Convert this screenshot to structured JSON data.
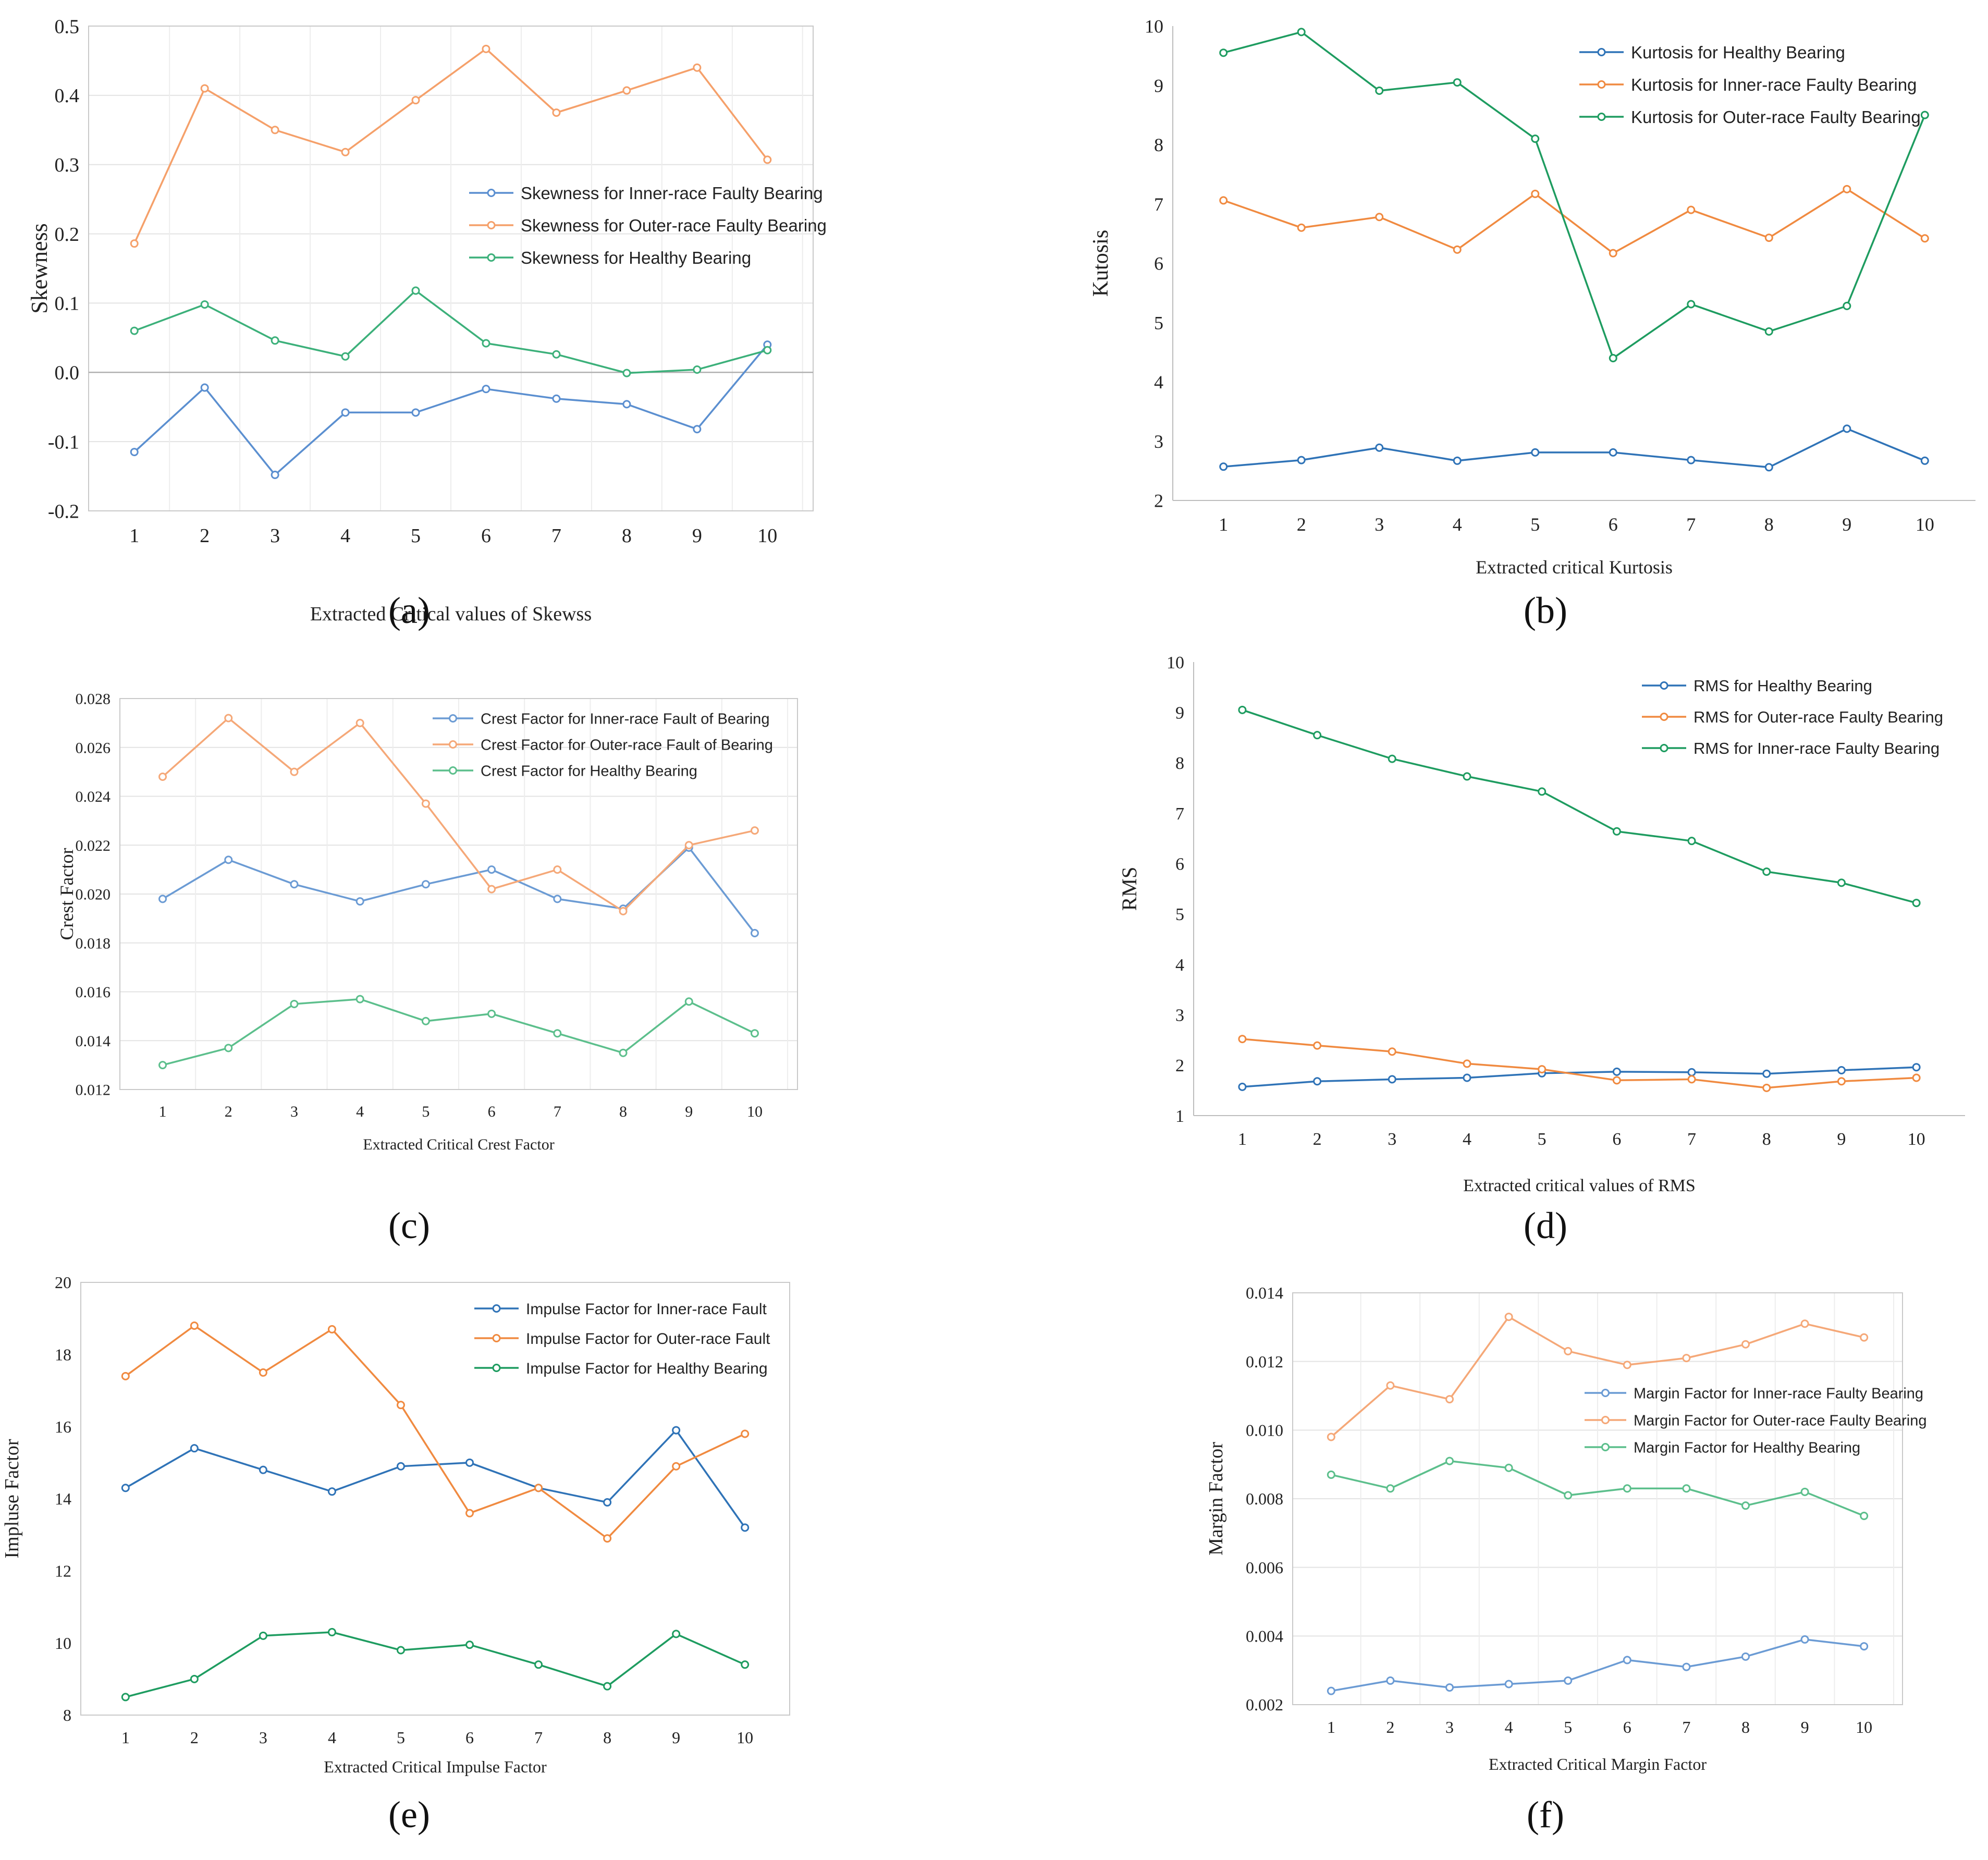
{
  "colors": {
    "blue": "#3f7fc1",
    "orange": "#f28c3c",
    "green": "#2aa36a"
  },
  "chart_data": [
    {
      "id": "a",
      "type": "line",
      "caption": "(a)",
      "title": "",
      "xlabel": "Extracted Critical values of Skewss",
      "ylabel": "Skewness",
      "categories": [
        1,
        2,
        3,
        4,
        5,
        6,
        7,
        8,
        9,
        10
      ],
      "ylim": [
        -0.2,
        0.5
      ],
      "yticks": [
        -0.2,
        -0.1,
        0.0,
        0.1,
        0.2,
        0.3,
        0.4,
        0.5
      ],
      "ytick_labels": [
        "-0.2",
        "-0.1",
        "0.0",
        "0.1",
        "0.2",
        "0.3",
        "0.4",
        "0.5"
      ],
      "grid": true,
      "zero_line": true,
      "legend_position": "right",
      "series": [
        {
          "name": "Skewness for Inner-race Faulty Bearing",
          "color": "#5b8fd0",
          "values": [
            -0.115,
            -0.022,
            -0.148,
            -0.058,
            -0.058,
            -0.024,
            -0.038,
            -0.046,
            -0.082,
            0.04
          ]
        },
        {
          "name": "Skewness for Outer-race Faulty Bearing",
          "color": "#f5a06a",
          "values": [
            0.186,
            0.41,
            0.35,
            0.318,
            0.393,
            0.467,
            0.375,
            0.407,
            0.44,
            0.307
          ]
        },
        {
          "name": "Skewness for Healthy Bearing",
          "color": "#3cb07a",
          "values": [
            0.06,
            0.098,
            0.046,
            0.023,
            0.118,
            0.042,
            0.026,
            -0.001,
            0.004,
            0.032
          ]
        }
      ]
    },
    {
      "id": "b",
      "type": "line",
      "caption": "(b)",
      "title": "",
      "xlabel": "Extracted critical Kurtosis",
      "ylabel": "Kutosis",
      "categories": [
        1,
        2,
        3,
        4,
        5,
        6,
        7,
        8,
        9,
        10
      ],
      "ylim": [
        2,
        10
      ],
      "yticks": [
        2,
        3,
        4,
        5,
        6,
        7,
        8,
        9,
        10
      ],
      "ytick_labels": [
        "2",
        "3",
        "4",
        "5",
        "6",
        "7",
        "8",
        "9",
        "10"
      ],
      "grid": false,
      "legend_position": "top-right",
      "series": [
        {
          "name": "Kurtosis for Healthy Bearing",
          "color": "#2f73b7",
          "values": [
            2.57,
            2.68,
            2.89,
            2.67,
            2.81,
            2.81,
            2.68,
            2.56,
            3.21,
            2.67
          ]
        },
        {
          "name": "Kurtosis for Inner-race Faulty Bearing",
          "color": "#f08a40",
          "values": [
            7.06,
            6.6,
            6.78,
            6.23,
            7.17,
            6.17,
            6.9,
            6.43,
            7.25,
            6.42
          ]
        },
        {
          "name": "Kurtosis for Outer-race Faulty Bearing",
          "color": "#1e9c60",
          "values": [
            9.55,
            9.9,
            8.91,
            9.05,
            8.1,
            4.4,
            5.31,
            4.85,
            5.28,
            8.5
          ]
        }
      ]
    },
    {
      "id": "c",
      "type": "line",
      "caption": "(c)",
      "title": "",
      "xlabel": "Extracted Critical Crest Factor",
      "ylabel": "Crest Factor",
      "categories": [
        1,
        2,
        3,
        4,
        5,
        6,
        7,
        8,
        9,
        10
      ],
      "ylim": [
        0.012,
        0.028
      ],
      "yticks": [
        0.012,
        0.014,
        0.016,
        0.018,
        0.02,
        0.022,
        0.024,
        0.026,
        0.028
      ],
      "ytick_labels": [
        "0.012",
        "0.014",
        "0.016",
        "0.018",
        "0.020",
        "0.022",
        "0.024",
        "0.026",
        "0.028"
      ],
      "grid": true,
      "legend_position": "top-right",
      "series": [
        {
          "name": "Crest Factor for Inner-race Fault of Bearing",
          "color": "#6b9bd4",
          "values": [
            0.0198,
            0.0214,
            0.0204,
            0.0197,
            0.0204,
            0.021,
            0.0198,
            0.0194,
            0.0219,
            0.0184
          ]
        },
        {
          "name": "Crest Factor for Outer-race Fault of Bearing",
          "color": "#f5a878",
          "values": [
            0.0248,
            0.0272,
            0.025,
            0.027,
            0.0237,
            0.0202,
            0.021,
            0.0193,
            0.022,
            0.0226
          ]
        },
        {
          "name": "Crest Factor for Healthy Bearing",
          "color": "#5cbf8c",
          "values": [
            0.013,
            0.0137,
            0.0155,
            0.0157,
            0.0148,
            0.0151,
            0.0143,
            0.0135,
            0.0156,
            0.0143
          ]
        }
      ]
    },
    {
      "id": "d",
      "type": "line",
      "caption": "(d)",
      "title": "",
      "xlabel": "Extracted critical values of RMS",
      "ylabel": "RMS",
      "categories": [
        1,
        2,
        3,
        4,
        5,
        6,
        7,
        8,
        9,
        10
      ],
      "ylim": [
        1,
        10
      ],
      "yticks": [
        1,
        2,
        3,
        4,
        5,
        6,
        7,
        8,
        9,
        10
      ],
      "ytick_labels": [
        "1",
        "2",
        "3",
        "4",
        "5",
        "6",
        "7",
        "8",
        "9",
        "10"
      ],
      "grid": false,
      "legend_position": "top-right",
      "series": [
        {
          "name": "RMS for Healthy Bearing",
          "color": "#2f73b7",
          "values": [
            1.57,
            1.68,
            1.72,
            1.75,
            1.84,
            1.87,
            1.86,
            1.83,
            1.9,
            1.96
          ]
        },
        {
          "name": "RMS for Outer-race Faulty Bearing",
          "color": "#f08a40",
          "values": [
            2.52,
            2.39,
            2.27,
            2.03,
            1.92,
            1.7,
            1.72,
            1.55,
            1.68,
            1.75
          ]
        },
        {
          "name": "RMS for Inner-race Faulty Bearing",
          "color": "#1e9c60",
          "values": [
            9.05,
            8.55,
            8.08,
            7.73,
            7.43,
            6.64,
            6.45,
            5.84,
            5.62,
            5.22
          ]
        }
      ]
    },
    {
      "id": "e",
      "type": "line",
      "caption": "(e)",
      "title": "",
      "xlabel": "Extracted Critical Impulse Factor",
      "ylabel": "Impluse Factor",
      "categories": [
        1,
        2,
        3,
        4,
        5,
        6,
        7,
        8,
        9,
        10
      ],
      "ylim": [
        8,
        20
      ],
      "yticks": [
        8,
        10,
        12,
        14,
        16,
        18,
        20
      ],
      "ytick_labels": [
        "8",
        "10",
        "12",
        "14",
        "16",
        "18",
        "20"
      ],
      "grid": false,
      "legend_position": "top-right",
      "series": [
        {
          "name": "Impulse Factor for Inner-race Fault",
          "color": "#2f73b7",
          "values": [
            14.3,
            15.4,
            14.8,
            14.2,
            14.9,
            15.0,
            14.3,
            13.9,
            15.9,
            13.2
          ]
        },
        {
          "name": "Impulse Factor for Outer-race Fault",
          "color": "#f08a40",
          "values": [
            17.4,
            18.8,
            17.5,
            18.7,
            16.6,
            13.6,
            14.3,
            12.9,
            14.9,
            15.8
          ]
        },
        {
          "name": "Impulse Factor for Healthy Bearing",
          "color": "#1e9c60",
          "values": [
            8.5,
            9.0,
            10.2,
            10.3,
            9.8,
            9.95,
            9.4,
            8.8,
            10.25,
            9.4
          ]
        }
      ]
    },
    {
      "id": "f",
      "type": "line",
      "caption": "(f)",
      "title": "",
      "xlabel": "Extracted Critical Margin Factor",
      "ylabel": "Margin Factor",
      "categories": [
        1,
        2,
        3,
        4,
        5,
        6,
        7,
        8,
        9,
        10
      ],
      "ylim": [
        0.002,
        0.014
      ],
      "yticks": [
        0.002,
        0.004,
        0.006,
        0.008,
        0.01,
        0.012,
        0.014
      ],
      "ytick_labels": [
        "0.002",
        "0.004",
        "0.006",
        "0.008",
        "0.010",
        "0.012",
        "0.014"
      ],
      "grid": true,
      "legend_position": "right",
      "series": [
        {
          "name": "Margin Factor for Inner-race Faulty Bearing",
          "color": "#6b9bd4",
          "values": [
            0.0024,
            0.0027,
            0.0025,
            0.0026,
            0.0027,
            0.0033,
            0.0031,
            0.0034,
            0.0039,
            0.0037
          ]
        },
        {
          "name": "Margin Factor for Outer-race Faulty Bearing",
          "color": "#f5a878",
          "values": [
            0.0098,
            0.0113,
            0.0109,
            0.0133,
            0.0123,
            0.0119,
            0.0121,
            0.0125,
            0.0131,
            0.0127
          ]
        },
        {
          "name": "Margin Factor for Healthy Bearing",
          "color": "#5cbf8c",
          "values": [
            0.0087,
            0.0083,
            0.0091,
            0.0089,
            0.0081,
            0.0083,
            0.0083,
            0.0078,
            0.0082,
            0.0075
          ]
        }
      ]
    }
  ]
}
